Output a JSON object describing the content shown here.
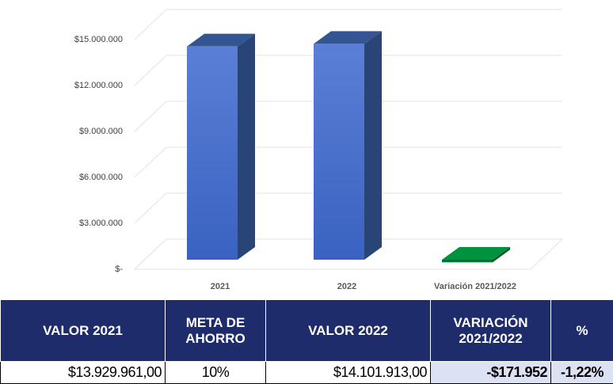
{
  "chart_data": {
    "type": "bar3d",
    "categories": [
      "2021",
      "2022",
      "Variación 2021/2022"
    ],
    "values": [
      13929961,
      14101913,
      -171952
    ],
    "colors": [
      "#4472c4",
      "#4472c4",
      "#00923f"
    ],
    "ylim": [
      0,
      15000000
    ],
    "yticks": [
      {
        "value": 0,
        "label": "$-"
      },
      {
        "value": 3000000,
        "label": "$3.000.000"
      },
      {
        "value": 6000000,
        "label": "$6.000.000"
      },
      {
        "value": 9000000,
        "label": "$9.000.000"
      },
      {
        "value": 12000000,
        "label": "$12.000.000"
      },
      {
        "value": 15000000,
        "label": "$15.000.000"
      }
    ],
    "grid": true
  },
  "table": {
    "headers": [
      "VALOR 2021",
      "META DE AHORRO",
      "VALOR 2022",
      "VARIACIÓN 2021/2022",
      "%"
    ],
    "rows": [
      [
        "$13.929.961,00",
        "10%",
        "$14.101.913,00",
        "-$171.952",
        "-1,22%"
      ]
    ]
  }
}
